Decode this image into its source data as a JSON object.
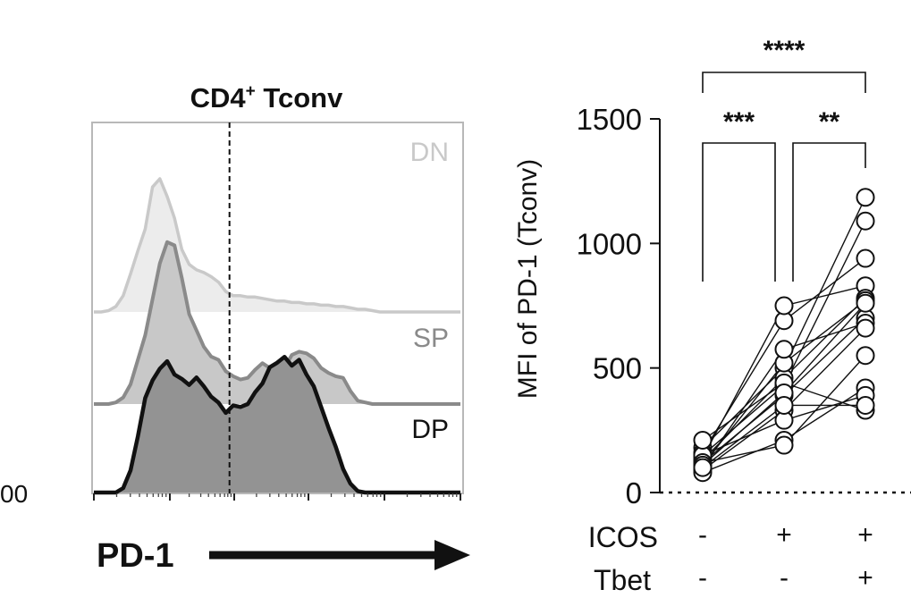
{
  "colors": {
    "dn": "#c9c9c9",
    "dn_fill": "#ececec",
    "sp": "#8a8a8a",
    "sp_fill": "#c8c8c8",
    "dp": "#111111",
    "dp_fill": "#939393",
    "axis": "#222222"
  },
  "cropped_label": "00",
  "histogram": {
    "title_main": "CD4",
    "title_sup": "+",
    "title_tail": " Tconv",
    "x_label": "PD-1",
    "gate": "dashed-vertical",
    "chart_data": {
      "type": "area",
      "title": "CD4+ Tconv",
      "xlabel": "PD-1",
      "x": [
        0,
        2,
        4,
        6,
        8,
        10,
        12,
        14,
        16,
        18,
        20,
        22,
        24,
        26,
        28,
        30,
        32,
        34,
        36,
        38,
        40,
        42,
        44,
        46,
        48,
        50,
        52,
        54,
        56,
        58,
        60,
        62,
        64,
        66,
        68,
        70,
        72,
        74,
        76,
        78,
        80,
        82,
        84,
        86,
        88,
        90,
        92,
        94,
        96,
        98,
        100
      ],
      "gate_x": 37,
      "series": [
        {
          "name": "DN",
          "values": [
            0,
            0,
            0.01,
            0.04,
            0.12,
            0.28,
            0.45,
            0.61,
            0.92,
            0.98,
            0.85,
            0.69,
            0.46,
            0.35,
            0.31,
            0.29,
            0.26,
            0.22,
            0.15,
            0.12,
            0.12,
            0.11,
            0.11,
            0.1,
            0.09,
            0.08,
            0.08,
            0.07,
            0.07,
            0.06,
            0.06,
            0.05,
            0.05,
            0.04,
            0.04,
            0.03,
            0.02,
            0.02,
            0.01,
            0,
            0,
            0,
            0,
            0,
            0,
            0,
            0,
            0,
            0,
            0,
            0
          ]
        },
        {
          "name": "SP",
          "values": [
            0,
            0,
            0,
            0.01,
            0.04,
            0.12,
            0.27,
            0.42,
            0.64,
            0.86,
            0.99,
            0.97,
            0.77,
            0.55,
            0.45,
            0.35,
            0.29,
            0.27,
            0.2,
            0.17,
            0.15,
            0.16,
            0.21,
            0.25,
            0.22,
            0.21,
            0.22,
            0.3,
            0.32,
            0.31,
            0.28,
            0.22,
            0.19,
            0.17,
            0.16,
            0.08,
            0.02,
            0.01,
            0,
            0,
            0,
            0,
            0,
            0,
            0,
            0,
            0,
            0,
            0,
            0,
            0
          ]
        },
        {
          "name": "DP",
          "values": [
            0,
            0,
            0,
            0,
            0.03,
            0.15,
            0.38,
            0.64,
            0.76,
            0.84,
            0.89,
            0.8,
            0.77,
            0.73,
            0.78,
            0.72,
            0.65,
            0.61,
            0.54,
            0.59,
            0.58,
            0.6,
            0.68,
            0.74,
            0.85,
            0.88,
            0.92,
            0.86,
            0.9,
            0.8,
            0.72,
            0.58,
            0.44,
            0.31,
            0.16,
            0.06,
            0.01,
            0,
            0,
            0,
            0,
            0,
            0,
            0,
            0,
            0,
            0,
            0,
            0,
            0,
            0
          ]
        }
      ]
    }
  },
  "scatter": {
    "chart_data": {
      "type": "scatter",
      "ylabel": "MFI of PD-1 (Tconv)",
      "ylim": [
        0,
        1500
      ],
      "yticks": [
        0,
        500,
        1000,
        1500
      ],
      "groups": [
        {
          "ICOS": "-",
          "Tbet": "-"
        },
        {
          "ICOS": "+",
          "Tbet": "-"
        },
        {
          "ICOS": "+",
          "Tbet": "+"
        }
      ],
      "row_labels": [
        "ICOS",
        "Tbet"
      ],
      "paired_samples": [
        [
          180,
          500,
          1185
        ],
        [
          150,
          430,
          1090
        ],
        [
          160,
          690,
          940
        ],
        [
          140,
          750,
          830
        ],
        [
          130,
          460,
          780
        ],
        [
          110,
          520,
          770
        ],
        [
          120,
          390,
          700
        ],
        [
          100,
          575,
          680
        ],
        [
          90,
          330,
          660
        ],
        [
          80,
          210,
          420
        ],
        [
          150,
          290,
          390
        ],
        [
          120,
          190,
          550
        ],
        [
          210,
          440,
          330
        ],
        [
          110,
          400,
          760
        ],
        [
          100,
          350,
          350
        ]
      ],
      "significance": [
        {
          "from": 0,
          "to": 2,
          "label": "****"
        },
        {
          "from": 0,
          "to": 1,
          "label": "***"
        },
        {
          "from": 1,
          "to": 2,
          "label": "**"
        }
      ]
    }
  }
}
